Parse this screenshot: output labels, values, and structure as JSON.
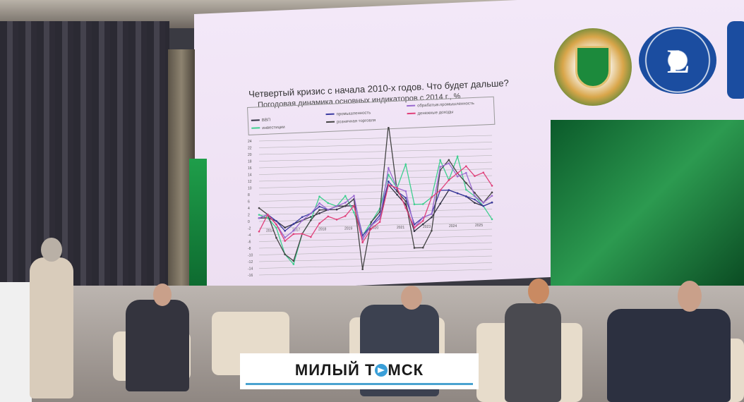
{
  "slide": {
    "title": "Четвертый кризис с начала 2010-х годов. Что будет дальше?",
    "subtitle": "Погодовая динамика основных индикаторов с 2014 г., %",
    "legend": [
      {
        "label": "ВВП",
        "color": "#333344"
      },
      {
        "label": "инвестиции",
        "color": "#3fcf8f"
      },
      {
        "label": "промышленность",
        "color": "#3a3aa0"
      },
      {
        "label": "розничная торговля",
        "color": "#444"
      },
      {
        "label": "обрабатыв.промышленность",
        "color": "#9a6bd0"
      },
      {
        "label": "денежные доходы",
        "color": "#e0407a"
      }
    ]
  },
  "chart_data": {
    "type": "line",
    "ylim": [
      -16,
      24
    ],
    "yticks": [
      "24",
      "22",
      "20",
      "18",
      "16",
      "14",
      "12",
      "10",
      "8",
      "6",
      "4",
      "2",
      "0",
      "-2",
      "-4",
      "-6",
      "-8",
      "-10",
      "-12",
      "-14",
      "-16"
    ],
    "xticks": [
      "2014",
      "2017",
      "2018",
      "2019",
      "2020",
      "2021",
      "2023",
      "2024",
      "2025"
    ],
    "series": [
      {
        "name": "ВВП",
        "color": "#333344",
        "values": [
          1,
          1,
          0,
          -2,
          -1,
          0,
          1,
          2,
          3,
          3,
          4,
          4,
          -6,
          -2,
          0,
          10,
          7,
          4,
          -4,
          -2,
          0,
          4,
          8,
          7,
          6,
          4,
          3,
          4
        ]
      },
      {
        "name": "инвестиции",
        "color": "#3fcf8f",
        "values": [
          2,
          1,
          -2,
          -10,
          -13,
          -4,
          0,
          7,
          5,
          4,
          7,
          2,
          -5,
          -1,
          3,
          13,
          9,
          16,
          4,
          4,
          6,
          17,
          11,
          18,
          8,
          6,
          3,
          -1
        ]
      },
      {
        "name": "промышленность",
        "color": "#3a3aa0",
        "values": [
          1,
          2,
          0,
          -3,
          -1,
          1,
          2,
          4,
          3,
          4,
          4,
          6,
          -5,
          -2,
          1,
          11,
          8,
          6,
          -2,
          0,
          1,
          8,
          8,
          7,
          6,
          5,
          3,
          4
        ]
      },
      {
        "name": "розничная торговля",
        "color": "#444",
        "values": [
          4,
          2,
          -5,
          -10,
          -12,
          -4,
          0,
          3,
          3,
          4,
          4,
          6,
          -15,
          -1,
          2,
          28,
          8,
          5,
          -9,
          -9,
          -4,
          14,
          17,
          13,
          10,
          7,
          4,
          7
        ]
      },
      {
        "name": "обрабатыв.промышленность",
        "color": "#9a6bd0",
        "values": [
          1,
          2,
          -1,
          -5,
          -3,
          0,
          2,
          5,
          3,
          4,
          5,
          7,
          -6,
          -2,
          0,
          15,
          9,
          8,
          -3,
          0,
          1,
          15,
          16,
          12,
          13,
          6,
          4,
          6
        ]
      },
      {
        "name": "денежные доходы",
        "color": "#e0407a",
        "values": [
          -3,
          2,
          -1,
          -6,
          -4,
          -4,
          -5,
          -1,
          1,
          0,
          1,
          4,
          -7,
          -3,
          -1,
          10,
          9,
          3,
          -3,
          -1,
          6,
          8,
          11,
          13,
          15,
          12,
          13,
          9
        ]
      }
    ]
  },
  "caption": {
    "text_before": "МИЛЫЙ Т",
    "text_after": "МСК",
    "accent": "#4aa3d0"
  }
}
